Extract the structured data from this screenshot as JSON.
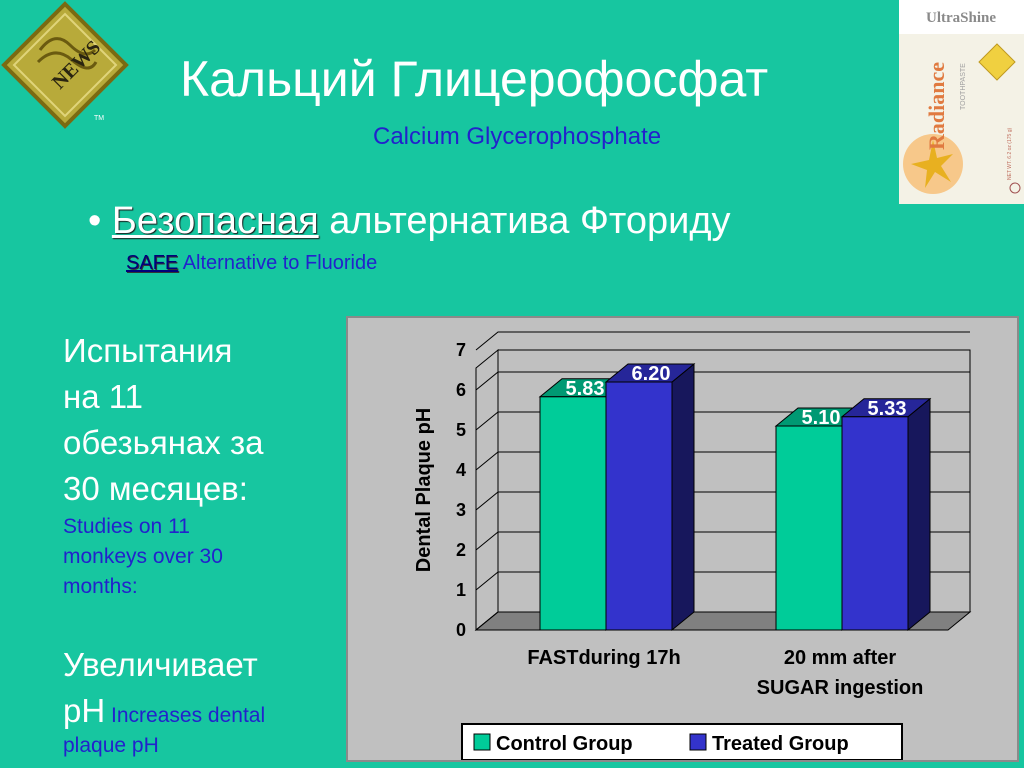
{
  "slide": {
    "title": "Кальций Глицерофосфат",
    "subtitle": "Calcium Glycerophosphate",
    "bullet": {
      "marker": "•",
      "ru_underlined": "Безопасная",
      "ru_rest": " альтернатива Фториду",
      "en_underlined": "SAFE",
      "en_rest": " Alternative to Fluoride"
    },
    "left": {
      "ru_lines": [
        "Испытания",
        "на 11",
        "обезьянах за",
        "30 месяцев:"
      ],
      "en_lines": [
        "Studies on 11",
        "monkeys over 30",
        "months:"
      ],
      "inc_ru_lines": [
        "Увеличивает",
        "pH"
      ],
      "inc_en": " Increases dental plaque pH"
    },
    "logo": {
      "text": "NEWS",
      "tm": "TM",
      "border_color": "#8a7a1a",
      "fill_color": "#b8aa3a"
    },
    "product": {
      "brand": "UltraShine",
      "name": "Radiance",
      "type": "TOOTHPASTE",
      "net": "NET WT. 6.2 oz (175 g)"
    }
  },
  "colors": {
    "background": "#17C6A0",
    "control": "#00CC99",
    "treated": "#3333CC",
    "chart_bg": "#C0C0C0"
  },
  "chart_data": {
    "type": "bar",
    "categories": [
      "FASTduring 17h",
      "20 mm after SUGAR ingestion"
    ],
    "category_lines": [
      [
        "FASTduring 17h"
      ],
      [
        "20 mm after",
        "SUGAR ingestion"
      ]
    ],
    "series": [
      {
        "name": "Control Group",
        "values": [
          5.83,
          5.1
        ],
        "labels": [
          "5.83",
          "5.10"
        ]
      },
      {
        "name": "Treated Group",
        "values": [
          6.2,
          5.33
        ],
        "labels": [
          "6.20",
          "5.33"
        ]
      }
    ],
    "ylabel": "Dental Plaque pH",
    "ylim": [
      0,
      7
    ],
    "yticks": [
      "0",
      "1",
      "2",
      "3",
      "4",
      "5",
      "6",
      "7"
    ],
    "legend": "bottom",
    "style": "3d"
  }
}
